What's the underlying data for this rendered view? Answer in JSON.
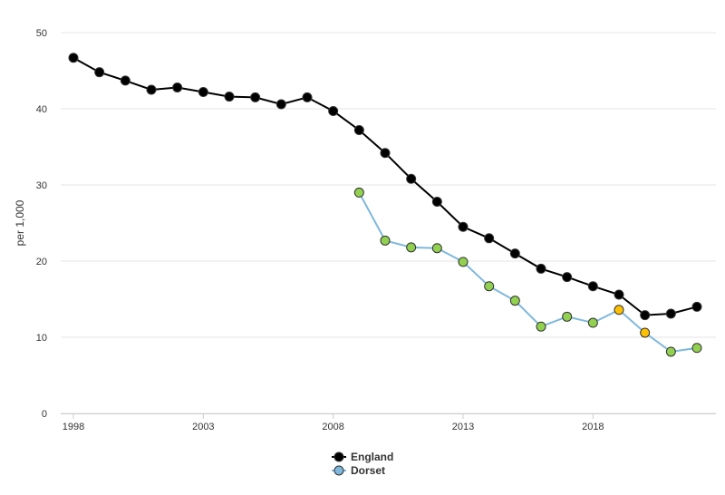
{
  "chart_data": {
    "type": "line",
    "title": "",
    "xlabel": "",
    "ylabel": "per 1,000",
    "ylim": [
      0,
      50
    ],
    "yticks": [
      0,
      10,
      20,
      30,
      40,
      50
    ],
    "xticks": [
      1998,
      2003,
      2008,
      2013,
      2018
    ],
    "xlim": [
      1998,
      2022
    ],
    "grid": true,
    "legend_position": "bottom-center",
    "series": [
      {
        "name": "England",
        "line_color": "#000000",
        "marker_color": "#000000",
        "x": [
          1998,
          1999,
          2000,
          2001,
          2002,
          2003,
          2004,
          2005,
          2006,
          2007,
          2008,
          2009,
          2010,
          2011,
          2012,
          2013,
          2014,
          2015,
          2016,
          2017,
          2018,
          2019,
          2020,
          2021,
          2022
        ],
        "values": [
          46.7,
          44.8,
          43.7,
          42.5,
          42.8,
          42.2,
          41.6,
          41.5,
          40.6,
          41.5,
          39.7,
          37.2,
          34.2,
          30.8,
          27.8,
          24.5,
          23.0,
          21.0,
          19.0,
          17.9,
          16.7,
          15.6,
          12.9,
          13.1,
          14.0
        ]
      },
      {
        "name": "Dorset",
        "line_color": "#7fb8dc",
        "marker_color": "#92d050",
        "x": [
          2009,
          2010,
          2011,
          2012,
          2013,
          2014,
          2015,
          2016,
          2017,
          2018,
          2019,
          2020,
          2021,
          2022
        ],
        "values": [
          29.0,
          22.7,
          21.8,
          21.7,
          19.9,
          16.7,
          14.8,
          11.4,
          12.7,
          11.9,
          13.6,
          10.6,
          8.1,
          8.6
        ],
        "point_colors": [
          "#92d050",
          "#92d050",
          "#92d050",
          "#92d050",
          "#92d050",
          "#92d050",
          "#92d050",
          "#92d050",
          "#92d050",
          "#92d050",
          "#ffc000",
          "#ffc000",
          "#92d050",
          "#92d050"
        ]
      }
    ]
  }
}
